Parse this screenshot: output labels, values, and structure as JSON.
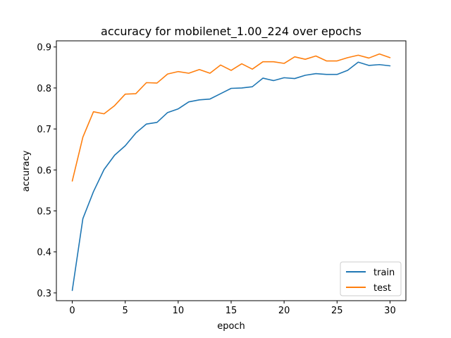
{
  "chart_data": {
    "type": "line",
    "title": "accuracy for mobilenet_1.00_224 over epochs",
    "xlabel": "epoch",
    "ylabel": "accuracy",
    "xlim": [
      -1.5,
      31.5
    ],
    "ylim": [
      0.281,
      0.915
    ],
    "xticks": [
      0,
      5,
      10,
      15,
      20,
      25,
      30
    ],
    "yticks": [
      0.3,
      0.4,
      0.5,
      0.6,
      0.7,
      0.8,
      0.9
    ],
    "grid": false,
    "legend_position": "lower-right",
    "x": [
      0,
      1,
      2,
      3,
      4,
      5,
      6,
      7,
      8,
      9,
      10,
      11,
      12,
      13,
      14,
      15,
      16,
      17,
      18,
      19,
      20,
      21,
      22,
      23,
      24,
      25,
      26,
      27,
      28,
      29,
      30
    ],
    "series": [
      {
        "name": "train",
        "color": "#1f77b4",
        "values": [
          0.306,
          0.481,
          0.547,
          0.601,
          0.636,
          0.659,
          0.69,
          0.712,
          0.716,
          0.74,
          0.749,
          0.766,
          0.771,
          0.773,
          0.786,
          0.799,
          0.8,
          0.803,
          0.824,
          0.818,
          0.825,
          0.823,
          0.831,
          0.835,
          0.833,
          0.833,
          0.843,
          0.863,
          0.855,
          0.857,
          0.854
        ]
      },
      {
        "name": "test",
        "color": "#ff7f0e",
        "values": [
          0.573,
          0.68,
          0.742,
          0.737,
          0.757,
          0.785,
          0.786,
          0.813,
          0.812,
          0.834,
          0.84,
          0.836,
          0.845,
          0.836,
          0.856,
          0.843,
          0.859,
          0.846,
          0.864,
          0.864,
          0.86,
          0.876,
          0.87,
          0.878,
          0.866,
          0.866,
          0.874,
          0.88,
          0.873,
          0.883,
          0.874
        ]
      }
    ]
  }
}
